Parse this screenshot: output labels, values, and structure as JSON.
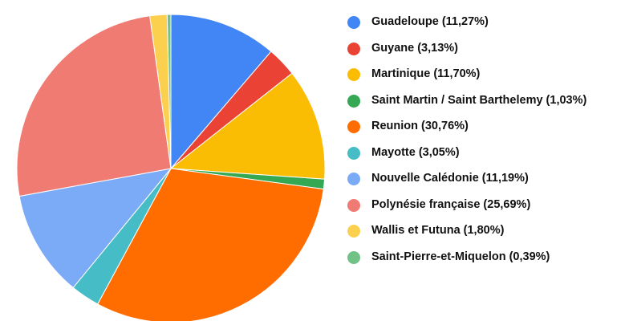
{
  "chart_data": {
    "type": "pie",
    "categories": [
      "Guadeloupe (11,27%)",
      "Guyane (3,13%)",
      "Martinique (11,70%)",
      "Saint Martin / Saint Barthelemy (1,03%)",
      "Reunion (30,76%)",
      "Mayotte (3,05%)",
      "Nouvelle Calédonie (11,19%)",
      "Polynésie française (25,69%)",
      "Wallis et Futuna (1,80%)",
      "Saint-Pierre-et-Miquelon (0,39%)"
    ],
    "values": [
      11.27,
      3.13,
      11.7,
      1.03,
      30.76,
      3.05,
      11.19,
      25.69,
      1.8,
      0.39
    ],
    "colors": [
      "#4285f4",
      "#ea4335",
      "#fbbc04",
      "#34a853",
      "#ff6d01",
      "#46bdc6",
      "#7baaf7",
      "#f07b72",
      "#fcd04f",
      "#71c287"
    ],
    "legend": "right"
  }
}
